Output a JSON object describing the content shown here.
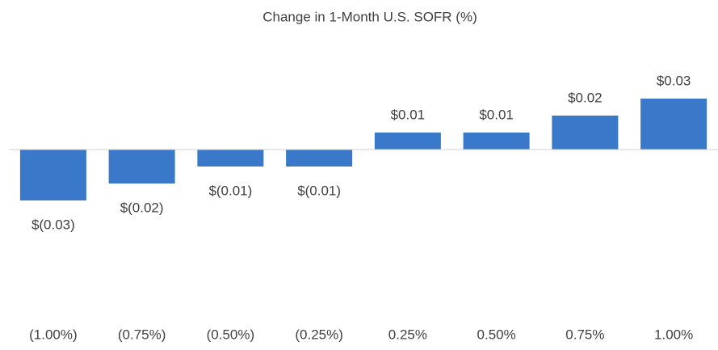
{
  "chart_data": {
    "type": "bar",
    "title": "Change in 1-Month U.S. SOFR (%)",
    "categories": [
      "(1.00%)",
      "(0.75%)",
      "(0.50%)",
      "(0.25%)",
      "0.25%",
      "0.50%",
      "0.75%",
      "1.00%"
    ],
    "values": [
      -0.03,
      -0.02,
      -0.01,
      -0.01,
      0.01,
      0.01,
      0.02,
      0.03
    ],
    "value_labels": [
      "$(0.03)",
      "$(0.02)",
      "$(0.01)",
      "$(0.01)",
      "$0.01",
      "$0.01",
      "$0.02",
      "$0.03"
    ],
    "color": "#3a78c9"
  }
}
